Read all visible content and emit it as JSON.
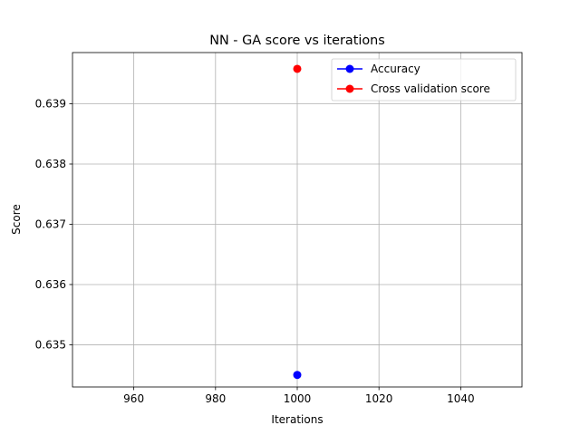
{
  "chart_data": {
    "type": "line",
    "title": "NN - GA score vs iterations",
    "xlabel": "Iterations",
    "ylabel": "Score",
    "xlim": [
      945,
      1055
    ],
    "ylim": [
      0.6343,
      0.63985
    ],
    "xticks": [
      960,
      980,
      1000,
      1020,
      1040
    ],
    "yticks": [
      0.635,
      0.636,
      0.637,
      0.638,
      0.639
    ],
    "grid": true,
    "legend_position": "top-right",
    "series": [
      {
        "name": "Accuracy",
        "color": "#0000ff",
        "x": [
          1000
        ],
        "y": [
          0.6345
        ]
      },
      {
        "name": "Cross validation score",
        "color": "#ff0000",
        "x": [
          1000
        ],
        "y": [
          0.63958
        ]
      }
    ]
  }
}
